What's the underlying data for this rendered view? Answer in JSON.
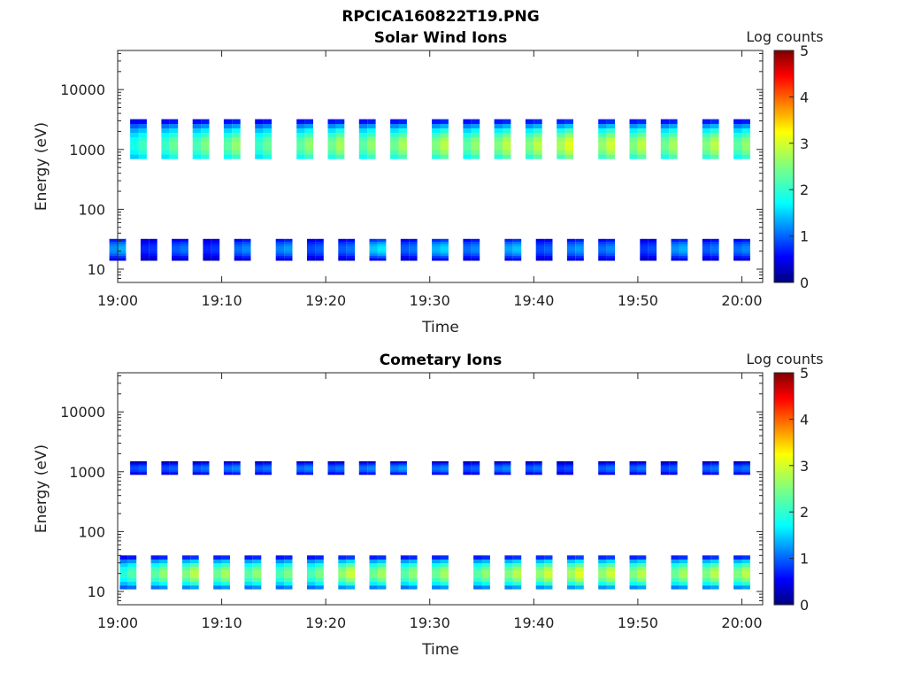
{
  "figure": {
    "title": "RPCICA160822T19.PNG"
  },
  "chart_data": [
    {
      "type": "heatmap",
      "title": "Solar Wind Ions",
      "xlabel": "Time",
      "ylabel": "Energy (eV)",
      "x_ticks": [
        "19:00",
        "19:10",
        "19:20",
        "19:30",
        "19:40",
        "19:50",
        "20:00"
      ],
      "x_range": [
        "19:00",
        "20:02"
      ],
      "y_scale": "log",
      "y_ticks": [
        "10",
        "100",
        "1000",
        "10000"
      ],
      "y_range": [
        6,
        45000
      ],
      "colorbar": {
        "label": "Log counts",
        "range": [
          0,
          5
        ],
        "ticks": [
          "0",
          "1",
          "2",
          "3",
          "4",
          "5"
        ],
        "colormap": "jet"
      },
      "grid": false,
      "bands": [
        {
          "name": "solar wind peak",
          "energy_range": [
            700,
            3200
          ],
          "approx_peak_energy": 1200,
          "times": [
            "19:02",
            "19:05",
            "19:08",
            "19:11",
            "19:14",
            "19:18",
            "19:21",
            "19:24",
            "19:27",
            "19:31",
            "19:34",
            "19:37",
            "19:40",
            "19:43",
            "19:47",
            "19:50",
            "19:53",
            "19:57",
            "20:00"
          ],
          "peak_log_counts": [
            2.2,
            2.4,
            2.5,
            2.6,
            2.4,
            2.6,
            2.7,
            2.6,
            2.7,
            2.8,
            2.6,
            2.8,
            2.8,
            3.0,
            2.9,
            2.8,
            2.7,
            2.8,
            2.6
          ]
        },
        {
          "name": "low energy",
          "energy_range": [
            14,
            32
          ],
          "approx_peak_energy": 22,
          "times": [
            "19:00",
            "19:03",
            "19:06",
            "19:09",
            "19:12",
            "19:16",
            "19:19",
            "19:22",
            "19:25",
            "19:28",
            "19:31",
            "19:34",
            "19:38",
            "19:41",
            "19:44",
            "19:47",
            "19:51",
            "19:54",
            "19:57",
            "20:00"
          ],
          "peak_log_counts": [
            1.5,
            0.9,
            1.2,
            0.9,
            1.3,
            1.4,
            1.1,
            1.2,
            1.8,
            1.2,
            1.7,
            1.3,
            1.6,
            1.1,
            1.4,
            1.3,
            1.0,
            1.5,
            1.2,
            1.3
          ]
        }
      ]
    },
    {
      "type": "heatmap",
      "title": "Cometary Ions",
      "xlabel": "Time",
      "ylabel": "Energy (eV)",
      "x_ticks": [
        "19:00",
        "19:10",
        "19:20",
        "19:30",
        "19:40",
        "19:50",
        "20:00"
      ],
      "x_range": [
        "19:00",
        "20:02"
      ],
      "y_scale": "log",
      "y_ticks": [
        "10",
        "100",
        "1000",
        "10000"
      ],
      "y_range": [
        6,
        45000
      ],
      "colorbar": {
        "label": "Log counts",
        "range": [
          0,
          5
        ],
        "ticks": [
          "0",
          "1",
          "2",
          "3",
          "4",
          "5"
        ],
        "colormap": "jet"
      },
      "grid": false,
      "bands": [
        {
          "name": "high energy",
          "energy_range": [
            900,
            1500
          ],
          "approx_peak_energy": 1150,
          "times": [
            "19:02",
            "19:05",
            "19:08",
            "19:11",
            "19:14",
            "19:18",
            "19:21",
            "19:24",
            "19:27",
            "19:31",
            "19:34",
            "19:37",
            "19:40",
            "19:43",
            "19:47",
            "19:50",
            "19:53",
            "19:57",
            "20:00"
          ],
          "peak_log_counts": [
            1.1,
            1.1,
            1.2,
            1.3,
            1.2,
            1.3,
            1.2,
            1.3,
            1.4,
            1.3,
            1.1,
            1.3,
            1.2,
            1.0,
            1.2,
            1.2,
            1.1,
            1.2,
            1.2
          ]
        },
        {
          "name": "low energy",
          "energy_range": [
            11,
            40
          ],
          "approx_peak_energy": 20,
          "times": [
            "19:01",
            "19:04",
            "19:07",
            "19:10",
            "19:13",
            "19:16",
            "19:19",
            "19:22",
            "19:25",
            "19:28",
            "19:31",
            "19:35",
            "19:38",
            "19:41",
            "19:44",
            "19:47",
            "19:50",
            "19:54",
            "19:57",
            "20:00"
          ],
          "peak_log_counts": [
            2.3,
            2.6,
            2.8,
            2.7,
            2.6,
            2.5,
            2.5,
            2.9,
            2.7,
            2.6,
            2.7,
            2.6,
            2.8,
            2.9,
            3.0,
            2.9,
            2.8,
            2.7,
            2.8,
            2.8
          ]
        }
      ]
    }
  ]
}
